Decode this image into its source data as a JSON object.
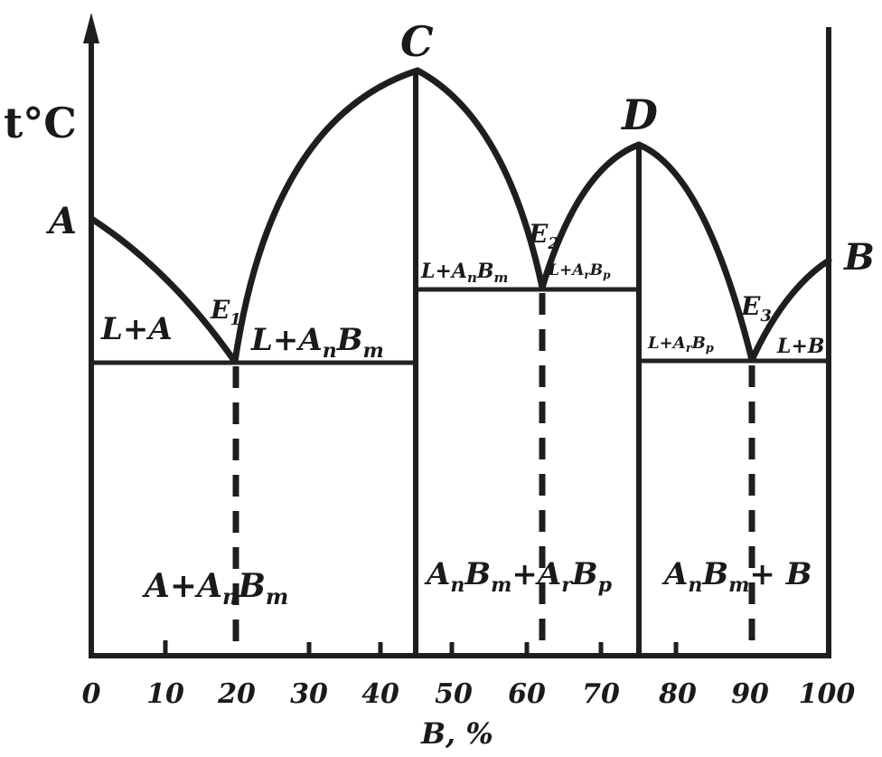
{
  "diagram": {
    "y_axis_label": "t°C",
    "x_axis_label": "B, %",
    "x_ticks": [
      "0",
      "10",
      "20",
      "30",
      "40",
      "50",
      "60",
      "70",
      "80",
      "90",
      "100"
    ],
    "points": {
      "A": "A",
      "B": "B",
      "C": "C",
      "D": "D",
      "E1": "E",
      "E1_sub": "1",
      "E2": "E",
      "E2_sub": "2",
      "E3": "E",
      "E3_sub": "3"
    },
    "regions": {
      "liquid_a": "L+A",
      "liquid_anbm_left_parts": [
        "L+A",
        "n",
        "B",
        "m"
      ],
      "liquid_anbm_right_parts": [
        "L+A",
        "n",
        "B",
        "m"
      ],
      "liquid_arbp_left_parts": [
        "L+A",
        "r",
        "B",
        "p"
      ],
      "liquid_arbp_right_parts": [
        "L+A",
        "r",
        "B",
        "p"
      ],
      "liquid_b": "L+B",
      "solid_a_anbm_parts": [
        "A+A",
        "n",
        "B",
        "m"
      ],
      "solid_anbm_arbp_parts": [
        "A",
        "n",
        "B",
        "m",
        "+A",
        "r",
        "B",
        "p"
      ],
      "solid_anbm_b_parts": [
        "A",
        "n",
        "B",
        "m",
        "+ B"
      ]
    }
  }
}
